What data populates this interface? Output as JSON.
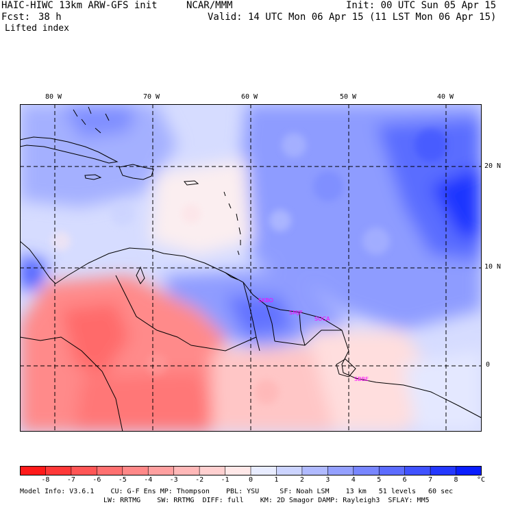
{
  "header": {
    "model_title": "HAIC-HIWC 13km ARW-GFS init",
    "org": "NCAR/MMM",
    "init_label": "Init: 00 UTC Sun 05 Apr 15",
    "fcst_label": "Fcst:",
    "fcst_value": "38 h",
    "valid_label": "Valid: 14 UTC Mon 06 Apr 15 (11 LST Mon 06 Apr 15)",
    "field_name": "Lifted index"
  },
  "map": {
    "lon_labels": [
      "80 W",
      "70 W",
      "60 W",
      "50 W",
      "40 W"
    ],
    "lat_labels": [
      "20 N",
      "10 N",
      "0"
    ],
    "stations": [
      "SKBO",
      "SMJP",
      "SOCA",
      "SBBE"
    ]
  },
  "colorbar": {
    "unit": "°C",
    "ticks": [
      "-8",
      "-7",
      "-6",
      "-5",
      "-4",
      "-3",
      "-2",
      "-1",
      "0",
      "1",
      "2",
      "3",
      "4",
      "5",
      "6",
      "7",
      "8"
    ],
    "colors": [
      "#ff1a1a",
      "#ff3838",
      "#ff5656",
      "#ff7070",
      "#ff8888",
      "#ffa0a0",
      "#ffb8b8",
      "#ffd0d0",
      "#ffe8e8",
      "#e8ecff",
      "#ccd4ff",
      "#b0baff",
      "#94a0ff",
      "#7886ff",
      "#5c6cff",
      "#4052ff",
      "#2438ff",
      "#0a1eff"
    ]
  },
  "footer": {
    "line1": "Model Info: V3.6.1    CU: G-F Ens MP: Thompson    PBL: YSU     SF: Noah LSM    13 km   51 levels   60 sec",
    "line2": "LW: RRTMG    SW: RRTMG  DIFF: full    KM: 2D Smagor DAMP: Rayleigh3  SFLAY: MM5"
  }
}
